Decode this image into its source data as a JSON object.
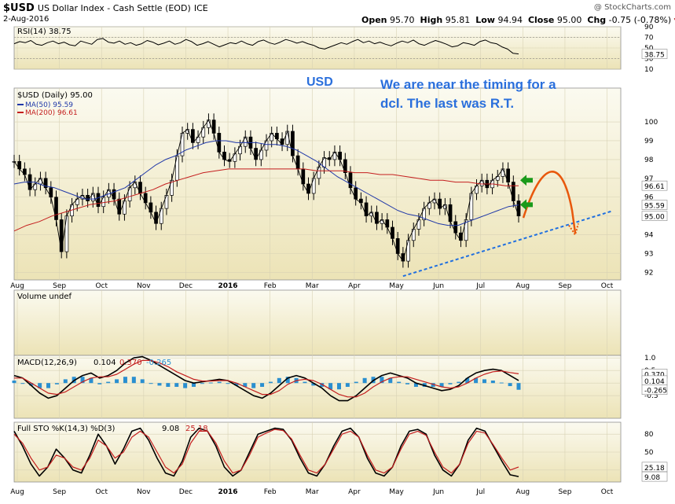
{
  "header": {
    "symbol": "$USD",
    "name": "US Dollar Index - Cash Settle (EOD)",
    "exchange": "ICE",
    "date": "2-Aug-2016",
    "watermark": "@ StockCharts.com",
    "open_label": "Open",
    "open": "95.70",
    "high_label": "High",
    "high": "95.81",
    "low_label": "Low",
    "low": "94.94",
    "close_label": "Close",
    "close": "95.00",
    "chg_label": "Chg",
    "chg": "-0.75 (-0.78%)"
  },
  "annotations": {
    "usd": "USD",
    "note_line1": "We are near the timing for a",
    "note_line2": "dcl. The last was R.T."
  },
  "colors": {
    "panel_bg_top": "#fbfaf0",
    "panel_bg_bottom": "#ede4b8",
    "price": "#000000",
    "ma50": "#2038a8",
    "ma200": "#c41e1e",
    "trendline": "#1f6fe0",
    "projection": "#e8580c",
    "arrow": "#1a9a1a",
    "volume_hist": "#2a8fd0"
  },
  "chart_data": [
    {
      "type": "line",
      "panel": "rsi",
      "title": "RSI(14) 38.75",
      "yticks": [
        10,
        30,
        50,
        70,
        90
      ],
      "ylim": [
        10,
        90
      ],
      "last_value": "38.75",
      "series": [
        {
          "values": [
            58,
            62,
            60,
            64,
            57,
            55,
            60,
            63,
            58,
            61,
            56,
            54,
            63,
            60,
            57,
            66,
            68,
            61,
            59,
            63,
            57,
            60,
            55,
            58,
            64,
            61,
            56,
            59,
            63,
            57,
            60,
            66,
            62,
            55,
            58,
            62,
            57,
            52,
            56,
            60,
            58,
            63,
            58,
            55,
            62,
            65,
            60,
            57,
            61,
            66,
            63,
            59,
            62,
            58,
            55,
            50,
            48,
            52,
            56,
            60,
            57,
            62,
            66,
            60,
            63,
            58,
            61,
            57,
            54,
            59,
            63,
            60,
            65,
            58,
            55,
            60,
            64,
            61,
            57,
            52,
            54,
            60,
            58,
            55,
            62,
            65,
            60,
            58,
            52,
            48,
            40,
            38.75
          ]
        }
      ]
    },
    {
      "type": "line",
      "panel": "price",
      "title": "$USD (Daily) 95.00",
      "yticks": [
        92,
        93,
        94,
        95,
        96,
        97,
        98,
        99,
        100
      ],
      "ylim": [
        91.6,
        101.8
      ],
      "xticks": [
        "Aug",
        "Sep",
        "Oct",
        "Nov",
        "Dec",
        "2016",
        "Feb",
        "Mar",
        "Apr",
        "May",
        "Jun",
        "Jul",
        "Aug",
        "Sep",
        "Oct"
      ],
      "price_tags": [
        "96.61",
        "95.59",
        "95.00"
      ],
      "series": [
        {
          "name": "$USD (Daily)",
          "values": [
            97.9,
            97.5,
            97.2,
            96.4,
            96.7,
            97.0,
            96.5,
            96.0,
            94.8,
            93.1,
            95.0,
            95.6,
            95.9,
            96.1,
            95.8,
            96.2,
            95.5,
            96.0,
            96.4,
            95.9,
            95.1,
            95.8,
            96.5,
            96.8,
            96.2,
            95.7,
            95.2,
            94.6,
            95.4,
            96.1,
            96.9,
            98.2,
            99.4,
            99.6,
            98.9,
            99.2,
            99.7,
            100.1,
            99.4,
            98.4,
            98.0,
            97.9,
            98.3,
            98.7,
            99.2,
            98.6,
            98.0,
            98.5,
            99.0,
            99.4,
            99.1,
            98.8,
            99.5,
            98.2,
            97.5,
            96.7,
            96.2,
            97.0,
            97.6,
            98.1,
            98.0,
            98.4,
            98.0,
            97.3,
            96.5,
            95.9,
            95.7,
            95.0,
            95.2,
            94.6,
            94.8,
            94.4,
            93.8,
            93.0,
            92.6,
            93.7,
            94.3,
            94.8,
            95.4,
            95.7,
            95.9,
            95.4,
            95.6,
            94.7,
            94.1,
            93.7,
            94.8,
            96.2,
            96.6,
            96.9,
            96.5,
            96.9,
            97.1,
            97.5,
            96.8,
            95.8,
            95.0
          ]
        },
        {
          "name": "MA(50) 95.59",
          "values": [
            96.7,
            96.8,
            96.8,
            96.6,
            96.5,
            96.3,
            96.1,
            95.9,
            95.9,
            96.1,
            96.3,
            96.5,
            96.9,
            97.3,
            97.7,
            98.0,
            98.2,
            98.5,
            98.7,
            98.9,
            99.0,
            99.0,
            98.9,
            98.9,
            98.9,
            98.8,
            98.8,
            98.7,
            98.5,
            98.2,
            97.9,
            97.5,
            97.1,
            96.8,
            96.5,
            96.2,
            95.9,
            95.6,
            95.3,
            95.1,
            95.0,
            94.8,
            94.6,
            94.5,
            94.5,
            94.7,
            94.9,
            95.1,
            95.3,
            95.5,
            95.59
          ]
        },
        {
          "name": "MA(200) 96.61",
          "values": [
            94.2,
            94.5,
            94.7,
            95.0,
            95.2,
            95.4,
            95.6,
            95.7,
            95.8,
            96.0,
            96.2,
            96.4,
            96.7,
            96.9,
            97.1,
            97.3,
            97.4,
            97.5,
            97.5,
            97.5,
            97.5,
            97.5,
            97.5,
            97.5,
            97.4,
            97.4,
            97.4,
            97.3,
            97.3,
            97.2,
            97.2,
            97.1,
            97.0,
            96.9,
            96.9,
            96.8,
            96.8,
            96.7,
            96.7,
            96.6,
            96.61
          ]
        }
      ]
    },
    {
      "type": "bar",
      "panel": "volume",
      "title": "Volume undef"
    },
    {
      "type": "line",
      "panel": "macd",
      "title": "MACD(12,26,9)",
      "macd_value": "0.104",
      "signal_value": "0.370",
      "hist_value": "-0.265",
      "yticks": [
        -0.5,
        0.0,
        0.5,
        1.0
      ],
      "ylim": [
        -1.4,
        1.1
      ],
      "price_tags": [
        "0.370",
        "0.104",
        "-0.265"
      ],
      "series": [
        {
          "name": "MACD",
          "values": [
            0.3,
            0.2,
            -0.1,
            -0.4,
            -0.6,
            -0.5,
            -0.2,
            0.1,
            0.3,
            0.4,
            0.2,
            0.3,
            0.5,
            0.8,
            1.0,
            1.05,
            0.9,
            0.7,
            0.5,
            0.3,
            0.1,
            0.0,
            0.05,
            0.1,
            0.15,
            0.1,
            -0.1,
            -0.3,
            -0.5,
            -0.6,
            -0.4,
            -0.1,
            0.2,
            0.3,
            0.2,
            0.0,
            -0.2,
            -0.5,
            -0.7,
            -0.7,
            -0.5,
            -0.2,
            0.1,
            0.3,
            0.4,
            0.3,
            0.2,
            0.0,
            -0.1,
            -0.2,
            -0.3,
            -0.25,
            -0.1,
            0.2,
            0.4,
            0.5,
            0.55,
            0.5,
            0.3,
            0.104
          ]
        },
        {
          "name": "Signal",
          "values": [
            0.2,
            0.2,
            0.0,
            -0.2,
            -0.4,
            -0.45,
            -0.35,
            -0.15,
            0.05,
            0.2,
            0.25,
            0.25,
            0.35,
            0.55,
            0.75,
            0.9,
            0.9,
            0.8,
            0.65,
            0.45,
            0.3,
            0.15,
            0.08,
            0.08,
            0.1,
            0.1,
            0.0,
            -0.15,
            -0.3,
            -0.45,
            -0.45,
            -0.3,
            -0.05,
            0.1,
            0.15,
            0.1,
            -0.05,
            -0.25,
            -0.45,
            -0.55,
            -0.55,
            -0.4,
            -0.15,
            0.05,
            0.2,
            0.25,
            0.25,
            0.15,
            0.05,
            -0.05,
            -0.15,
            -0.2,
            -0.15,
            0.0,
            0.2,
            0.35,
            0.45,
            0.48,
            0.42,
            0.37
          ]
        }
      ]
    },
    {
      "type": "line",
      "panel": "stochastic",
      "title": "Full STO %K(14,3) %D(3)",
      "k_value": "9.08",
      "d_value": "25.18",
      "yticks": [
        20,
        50,
        80
      ],
      "ylim": [
        0,
        100
      ],
      "price_tags": [
        "25.18",
        "9.08"
      ],
      "series": [
        {
          "name": "%K",
          "values": [
            85,
            60,
            30,
            10,
            25,
            55,
            40,
            20,
            15,
            45,
            80,
            60,
            30,
            55,
            85,
            90,
            70,
            40,
            15,
            10,
            35,
            75,
            90,
            85,
            60,
            25,
            10,
            20,
            50,
            80,
            85,
            90,
            88,
            70,
            40,
            15,
            10,
            30,
            60,
            85,
            90,
            75,
            40,
            15,
            10,
            25,
            60,
            85,
            88,
            80,
            45,
            20,
            10,
            30,
            70,
            90,
            85,
            60,
            35,
            12,
            9.08
          ]
        },
        {
          "name": "%D",
          "values": [
            80,
            65,
            40,
            20,
            25,
            45,
            40,
            25,
            20,
            40,
            70,
            60,
            40,
            50,
            75,
            85,
            75,
            50,
            25,
            15,
            30,
            65,
            85,
            85,
            65,
            35,
            15,
            20,
            45,
            75,
            82,
            88,
            86,
            72,
            45,
            20,
            15,
            30,
            55,
            80,
            85,
            75,
            45,
            20,
            15,
            25,
            55,
            80,
            85,
            78,
            50,
            25,
            15,
            30,
            65,
            85,
            82,
            62,
            40,
            20,
            25.18
          ]
        }
      ]
    }
  ]
}
